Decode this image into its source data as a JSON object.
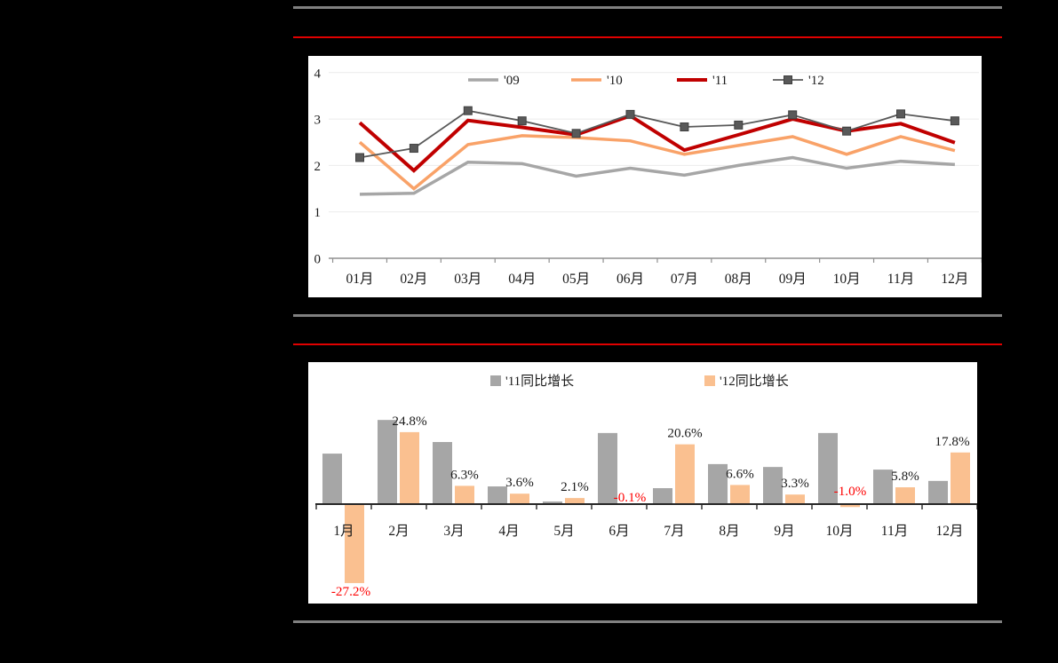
{
  "decorations": {
    "gray_rule_color": "#808080",
    "red_rule_color": "#e00000",
    "page_background": "#000000",
    "panel_background": "#ffffff"
  },
  "chart_data": [
    {
      "id": "monthly-volume-lines",
      "type": "line",
      "categories": [
        "01月",
        "02月",
        "03月",
        "04月",
        "05月",
        "06月",
        "07月",
        "08月",
        "09月",
        "10月",
        "11月",
        "12月"
      ],
      "y_ticks": [
        "0",
        "1",
        "2",
        "3",
        "4"
      ],
      "ylim": [
        0,
        4
      ],
      "grid": true,
      "legend_position": "top",
      "series": [
        {
          "name": "'09",
          "color": "#a6a6a6",
          "stroke_width": 3.5,
          "marker": "none",
          "values": [
            1.38,
            1.4,
            2.07,
            2.04,
            1.77,
            1.94,
            1.79,
            2.0,
            2.17,
            1.94,
            2.09,
            2.02
          ]
        },
        {
          "name": "'10",
          "color": "#f9a268",
          "stroke_width": 3.5,
          "marker": "none",
          "values": [
            2.5,
            1.5,
            2.45,
            2.64,
            2.6,
            2.53,
            2.24,
            2.43,
            2.62,
            2.24,
            2.62,
            2.32
          ]
        },
        {
          "name": "'11",
          "color": "#c00000",
          "stroke_width": 4,
          "marker": "none",
          "values": [
            2.92,
            1.89,
            2.97,
            2.82,
            2.66,
            3.07,
            2.33,
            2.66,
            3.0,
            2.74,
            2.9,
            2.49
          ]
        },
        {
          "name": "'12",
          "color": "#595959",
          "stroke_width": 1.8,
          "marker": "square",
          "marker_color": "#595959",
          "values": [
            2.17,
            2.37,
            3.18,
            2.96,
            2.69,
            3.1,
            2.83,
            2.87,
            3.09,
            2.74,
            3.11,
            2.96
          ]
        }
      ],
      "axis_color": "#909090",
      "grid_color": "#ebebeb",
      "tick_label_color": "#1a1a1a"
    },
    {
      "id": "yoy-growth-bars",
      "type": "bar",
      "categories": [
        "1月",
        "2月",
        "3月",
        "4月",
        "5月",
        "6月",
        "7月",
        "8月",
        "9月",
        "10月",
        "11月",
        "12月"
      ],
      "legend_position": "top",
      "grid": false,
      "series": [
        {
          "name": "'11同比增长",
          "color": "#a6a6a6",
          "show_labels": false,
          "values": [
            17.4,
            29.0,
            21.4,
            6.1,
            0.9,
            24.5,
            5.5,
            13.8,
            12.8,
            24.5,
            11.9,
            8.0
          ]
        },
        {
          "name": "'12同比增长",
          "color": "#fac090",
          "show_labels": true,
          "values": [
            -27.2,
            24.8,
            6.3,
            3.6,
            2.1,
            -0.1,
            20.6,
            6.6,
            3.3,
            -1.0,
            5.8,
            17.8
          ],
          "labels": [
            "-27.2%",
            "24.8%",
            "6.3%",
            "3.6%",
            "2.1%",
            "-0.1%",
            "20.6%",
            "6.6%",
            "3.3%",
            "-1.0%",
            "5.8%",
            "17.8%"
          ]
        }
      ],
      "label_color_positive": "#1a1a1a",
      "label_color_negative": "#fe0000",
      "axis_color": "#262626",
      "tick_label_color": "#1a1a1a"
    }
  ]
}
